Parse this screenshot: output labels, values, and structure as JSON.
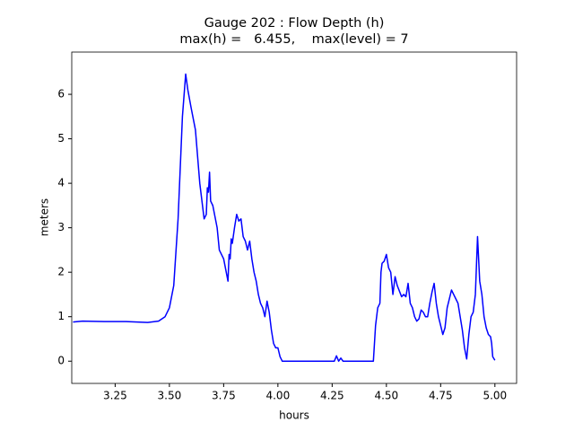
{
  "chart_data": {
    "type": "line",
    "title": "Gauge 202 : Flow Depth (h)",
    "subtitle": "max(h) =   6.455,    max(level) = 7",
    "x_label": "hours",
    "y_label": "meters",
    "xlim": [
      3.05,
      5.1
    ],
    "ylim": [
      -0.5,
      6.95
    ],
    "xticks": [
      3.25,
      {
        "value": 3.5,
        "label": "3.50"
      },
      3.75,
      {
        "value": 4,
        "label": "4.00"
      },
      4.25,
      {
        "value": 4.5,
        "label": "4.50"
      },
      4.75,
      {
        "value": 5,
        "label": "5.00"
      }
    ],
    "yticks": [
      0,
      1,
      2,
      3,
      4,
      5,
      6
    ],
    "x": [
      3.056,
      3.1,
      3.2,
      3.3,
      3.4,
      3.45,
      3.48,
      3.5,
      3.52,
      3.54,
      3.56,
      3.575,
      3.585,
      3.6,
      3.62,
      3.64,
      3.66,
      3.67,
      3.675,
      3.68,
      3.685,
      3.69,
      3.7,
      3.72,
      3.73,
      3.75,
      3.77,
      3.775,
      3.78,
      3.785,
      3.79,
      3.8,
      3.81,
      3.82,
      3.83,
      3.84,
      3.85,
      3.86,
      3.87,
      3.88,
      3.89,
      3.9,
      3.91,
      3.92,
      3.93,
      3.94,
      3.95,
      3.96,
      3.97,
      3.98,
      3.99,
      4.0,
      4.01,
      4.02,
      4.26,
      4.27,
      4.28,
      4.29,
      4.3,
      4.44,
      4.45,
      4.46,
      4.47,
      4.475,
      4.48,
      4.49,
      4.5,
      4.51,
      4.52,
      4.53,
      4.54,
      4.55,
      4.57,
      4.58,
      4.59,
      4.6,
      4.61,
      4.62,
      4.63,
      4.64,
      4.65,
      4.66,
      4.67,
      4.68,
      4.69,
      4.7,
      4.71,
      4.72,
      4.73,
      4.74,
      4.75,
      4.76,
      4.77,
      4.78,
      4.79,
      4.8,
      4.81,
      4.82,
      4.83,
      4.84,
      4.85,
      4.86,
      4.87,
      4.88,
      4.89,
      4.9,
      4.91,
      4.92,
      4.93,
      4.94,
      4.95,
      4.96,
      4.97,
      4.98,
      4.985,
      4.99,
      5.0
    ],
    "series": [
      {
        "color": "#0000ff",
        "values": [
          0.88,
          0.9,
          0.89,
          0.89,
          0.87,
          0.9,
          1.0,
          1.2,
          1.7,
          3.2,
          5.5,
          6.455,
          6.1,
          5.7,
          5.2,
          4.0,
          3.2,
          3.3,
          3.9,
          3.8,
          4.25,
          3.6,
          3.5,
          3.0,
          2.5,
          2.3,
          1.8,
          2.4,
          2.3,
          2.75,
          2.65,
          3.0,
          3.3,
          3.15,
          3.2,
          2.8,
          2.7,
          2.5,
          2.7,
          2.3,
          2.0,
          1.8,
          1.5,
          1.3,
          1.2,
          1.0,
          1.35,
          1.1,
          0.7,
          0.4,
          0.3,
          0.3,
          0.1,
          0,
          0,
          0.12,
          0,
          0.07,
          0,
          0,
          0.8,
          1.2,
          1.3,
          2.0,
          2.2,
          2.25,
          2.4,
          2.1,
          2.0,
          1.5,
          1.9,
          1.7,
          1.45,
          1.5,
          1.45,
          1.75,
          1.3,
          1.2,
          1.0,
          0.9,
          0.95,
          1.15,
          1.1,
          1.0,
          1.0,
          1.3,
          1.55,
          1.75,
          1.3,
          1.0,
          0.8,
          0.6,
          0.75,
          1.2,
          1.4,
          1.6,
          1.5,
          1.4,
          1.3,
          1.0,
          0.7,
          0.3,
          0.05,
          0.6,
          1.0,
          1.1,
          1.5,
          2.8,
          1.8,
          1.5,
          1.0,
          0.75,
          0.6,
          0.55,
          0.4,
          0.1,
          0.02
        ]
      }
    ]
  }
}
